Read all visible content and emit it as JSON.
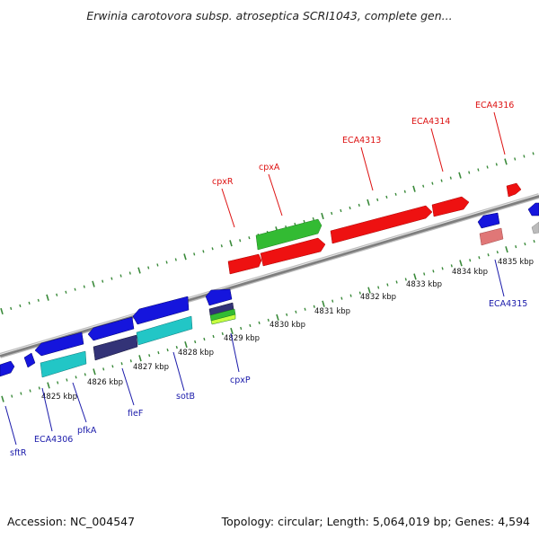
{
  "title": "Erwinia carotovora subsp. atroseptica SCRI1043, complete gen...",
  "footer": {
    "accession": "Accession: NC_004547",
    "summary": "Topology: circular; Length: 5,064,019 bp; Genes: 4,594"
  },
  "ruler": {
    "ticks": [
      "4825 kbp",
      "4826 kbp",
      "4827 kbp",
      "4828 kbp",
      "4829 kbp",
      "4830 kbp",
      "4831 kbp",
      "4832 kbp",
      "4833 kbp",
      "4834 kbp",
      "4835 kbp"
    ]
  },
  "colors": {
    "backbone": "#8a8a8a",
    "ticks": "#3a8a3a",
    "forward_label": "#dd1111",
    "reverse_label": "#1a1aaa",
    "red": "#ee1111",
    "green": "#33bb33",
    "blue": "#1515dd",
    "cyan": "#22c6c6",
    "navy": "#333377",
    "pink": "#e07777",
    "gray": "#bbbbbb"
  },
  "forward_labels": [
    {
      "name": "cpxR"
    },
    {
      "name": "cpxA"
    },
    {
      "name": "ECA4313"
    },
    {
      "name": "ECA4314"
    },
    {
      "name": "ECA4316"
    }
  ],
  "reverse_labels": [
    {
      "name": "sftR"
    },
    {
      "name": "ECA4306"
    },
    {
      "name": "pfkA"
    },
    {
      "name": "fieF"
    },
    {
      "name": "sotB"
    },
    {
      "name": "cpxP"
    },
    {
      "name": "ECA4315"
    }
  ]
}
